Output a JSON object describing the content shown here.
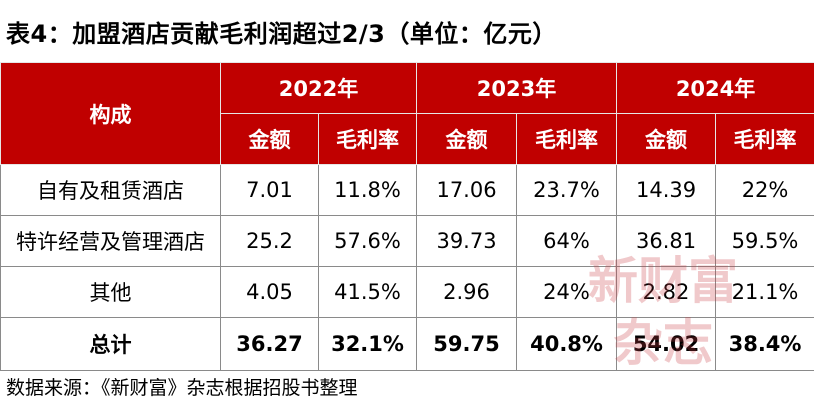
{
  "title": "表4：加盟酒店贡献毛利润超过2/3（单位：亿元）",
  "table": {
    "row_header": "构成",
    "years": [
      "2022年",
      "2023年",
      "2024年"
    ],
    "sub_headers": [
      "金额",
      "毛利率",
      "金额",
      "毛利率",
      "金额",
      "毛利率"
    ],
    "rows": [
      {
        "label": "自有及租赁酒店",
        "cells": [
          "7.01",
          "11.8%",
          "17.06",
          "23.7%",
          "14.39",
          "22%"
        ]
      },
      {
        "label": "特许经营及管理酒店",
        "cells": [
          "25.2",
          "57.6%",
          "39.73",
          "64%",
          "36.81",
          "59.5%"
        ]
      },
      {
        "label": "其他",
        "cells": [
          "4.05",
          "41.5%",
          "2.96",
          "24%",
          "2.82",
          "21.1%"
        ]
      },
      {
        "label": "总计",
        "cells": [
          "36.27",
          "32.1%",
          "59.75",
          "40.8%",
          "54.02",
          "38.4%"
        ]
      }
    ]
  },
  "source": "数据来源：《新财富》杂志根据招股书整理",
  "watermark": {
    "line1": "新财富",
    "line2": "杂志"
  },
  "colors": {
    "header_bg": "#c00000",
    "header_text": "#ffffff"
  }
}
